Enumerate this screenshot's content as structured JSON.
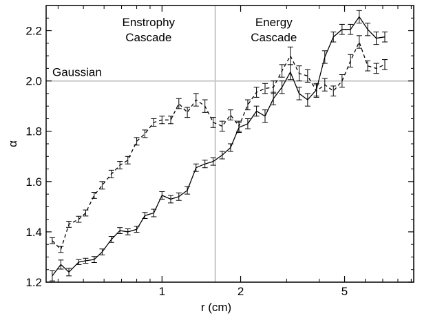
{
  "chart_data": {
    "type": "line",
    "title": "",
    "xlabel": "r (cm)",
    "ylabel": "α",
    "x_scale": "log",
    "xlim": [
      0.36,
      9.2
    ],
    "ylim": [
      1.2,
      2.3
    ],
    "x_ticks": [
      1,
      2,
      5
    ],
    "x_tick_labels": [
      "1",
      "2",
      "5"
    ],
    "y_ticks": [
      1.2,
      1.4,
      1.6,
      1.8,
      2.0,
      2.2
    ],
    "y_tick_labels": [
      "1.2",
      "1.4",
      "1.6",
      "1.8",
      "2.0",
      "2.2"
    ],
    "grid": false,
    "legend": "none",
    "reference_lines": {
      "horizontal": {
        "y": 2.0,
        "label": "Gaussian"
      },
      "vertical": {
        "x": 1.6
      }
    },
    "annotations": [
      {
        "lines": [
          "Enstrophy",
          "Cascade"
        ],
        "position": "left of vertical line"
      },
      {
        "lines": [
          "Energy",
          "Cascade"
        ],
        "position": "right of vertical line"
      }
    ],
    "series": [
      {
        "style": "solid",
        "color": "#000000",
        "points": [
          {
            "x": 0.38,
            "y": 1.225,
            "err": 0.02
          },
          {
            "x": 0.41,
            "y": 1.27,
            "err": 0.018
          },
          {
            "x": 0.44,
            "y": 1.24,
            "err": 0.015
          },
          {
            "x": 0.48,
            "y": 1.28,
            "err": 0.01
          },
          {
            "x": 0.51,
            "y": 1.285,
            "err": 0.01
          },
          {
            "x": 0.55,
            "y": 1.29,
            "err": 0.012
          },
          {
            "x": 0.59,
            "y": 1.32,
            "err": 0.012
          },
          {
            "x": 0.64,
            "y": 1.37,
            "err": 0.012
          },
          {
            "x": 0.69,
            "y": 1.405,
            "err": 0.012
          },
          {
            "x": 0.74,
            "y": 1.4,
            "err": 0.012
          },
          {
            "x": 0.8,
            "y": 1.41,
            "err": 0.012
          },
          {
            "x": 0.86,
            "y": 1.465,
            "err": 0.012
          },
          {
            "x": 0.93,
            "y": 1.475,
            "err": 0.015
          },
          {
            "x": 1.0,
            "y": 1.545,
            "err": 0.015
          },
          {
            "x": 1.08,
            "y": 1.53,
            "err": 0.015
          },
          {
            "x": 1.16,
            "y": 1.54,
            "err": 0.015
          },
          {
            "x": 1.25,
            "y": 1.565,
            "err": 0.015
          },
          {
            "x": 1.35,
            "y": 1.655,
            "err": 0.015
          },
          {
            "x": 1.46,
            "y": 1.67,
            "err": 0.015
          },
          {
            "x": 1.57,
            "y": 1.68,
            "err": 0.015
          },
          {
            "x": 1.7,
            "y": 1.705,
            "err": 0.015
          },
          {
            "x": 1.83,
            "y": 1.735,
            "err": 0.015
          },
          {
            "x": 1.97,
            "y": 1.815,
            "err": 0.02
          },
          {
            "x": 2.13,
            "y": 1.83,
            "err": 0.02
          },
          {
            "x": 2.3,
            "y": 1.88,
            "err": 0.02
          },
          {
            "x": 2.48,
            "y": 1.86,
            "err": 0.025
          },
          {
            "x": 2.67,
            "y": 1.93,
            "err": 0.025
          },
          {
            "x": 2.88,
            "y": 1.975,
            "err": 0.025
          },
          {
            "x": 3.1,
            "y": 2.035,
            "err": 0.03
          },
          {
            "x": 3.35,
            "y": 1.95,
            "err": 0.025
          },
          {
            "x": 3.61,
            "y": 1.925,
            "err": 0.025
          },
          {
            "x": 3.9,
            "y": 1.965,
            "err": 0.025
          },
          {
            "x": 4.2,
            "y": 2.095,
            "err": 0.025
          },
          {
            "x": 4.53,
            "y": 2.175,
            "err": 0.02
          },
          {
            "x": 4.89,
            "y": 2.205,
            "err": 0.02
          },
          {
            "x": 5.27,
            "y": 2.205,
            "err": 0.02
          },
          {
            "x": 5.69,
            "y": 2.255,
            "err": 0.025
          },
          {
            "x": 6.13,
            "y": 2.205,
            "err": 0.025
          },
          {
            "x": 6.61,
            "y": 2.17,
            "err": 0.025
          },
          {
            "x": 7.13,
            "y": 2.175,
            "err": 0.02
          }
        ]
      },
      {
        "style": "dashed",
        "color": "#000000",
        "points": [
          {
            "x": 0.38,
            "y": 1.365,
            "err": 0.012
          },
          {
            "x": 0.41,
            "y": 1.33,
            "err": 0.012
          },
          {
            "x": 0.44,
            "y": 1.43,
            "err": 0.012
          },
          {
            "x": 0.48,
            "y": 1.45,
            "err": 0.012
          },
          {
            "x": 0.51,
            "y": 1.475,
            "err": 0.012
          },
          {
            "x": 0.55,
            "y": 1.545,
            "err": 0.012
          },
          {
            "x": 0.59,
            "y": 1.585,
            "err": 0.015
          },
          {
            "x": 0.64,
            "y": 1.63,
            "err": 0.015
          },
          {
            "x": 0.69,
            "y": 1.665,
            "err": 0.015
          },
          {
            "x": 0.74,
            "y": 1.685,
            "err": 0.015
          },
          {
            "x": 0.8,
            "y": 1.76,
            "err": 0.015
          },
          {
            "x": 0.86,
            "y": 1.79,
            "err": 0.015
          },
          {
            "x": 0.93,
            "y": 1.835,
            "err": 0.015
          },
          {
            "x": 1.0,
            "y": 1.845,
            "err": 0.015
          },
          {
            "x": 1.08,
            "y": 1.845,
            "err": 0.015
          },
          {
            "x": 1.16,
            "y": 1.91,
            "err": 0.02
          },
          {
            "x": 1.25,
            "y": 1.875,
            "err": 0.02
          },
          {
            "x": 1.35,
            "y": 1.925,
            "err": 0.025
          },
          {
            "x": 1.46,
            "y": 1.9,
            "err": 0.025
          },
          {
            "x": 1.57,
            "y": 1.835,
            "err": 0.02
          },
          {
            "x": 1.7,
            "y": 1.82,
            "err": 0.02
          },
          {
            "x": 1.83,
            "y": 1.865,
            "err": 0.02
          },
          {
            "x": 1.97,
            "y": 1.82,
            "err": 0.02
          },
          {
            "x": 2.13,
            "y": 1.905,
            "err": 0.02
          },
          {
            "x": 2.3,
            "y": 1.955,
            "err": 0.02
          },
          {
            "x": 2.48,
            "y": 1.97,
            "err": 0.02
          },
          {
            "x": 2.67,
            "y": 1.975,
            "err": 0.025
          },
          {
            "x": 2.88,
            "y": 2.04,
            "err": 0.025
          },
          {
            "x": 3.1,
            "y": 2.1,
            "err": 0.035
          },
          {
            "x": 3.35,
            "y": 2.03,
            "err": 0.03
          },
          {
            "x": 3.61,
            "y": 2.02,
            "err": 0.025
          },
          {
            "x": 3.9,
            "y": 1.96,
            "err": 0.025
          },
          {
            "x": 4.2,
            "y": 1.985,
            "err": 0.025
          },
          {
            "x": 4.53,
            "y": 1.96,
            "err": 0.02
          },
          {
            "x": 4.89,
            "y": 2.0,
            "err": 0.025
          },
          {
            "x": 5.27,
            "y": 2.08,
            "err": 0.025
          },
          {
            "x": 5.69,
            "y": 2.155,
            "err": 0.025
          },
          {
            "x": 6.13,
            "y": 2.06,
            "err": 0.02
          },
          {
            "x": 6.61,
            "y": 2.05,
            "err": 0.02
          },
          {
            "x": 7.13,
            "y": 2.065,
            "err": 0.02
          }
        ]
      }
    ]
  }
}
